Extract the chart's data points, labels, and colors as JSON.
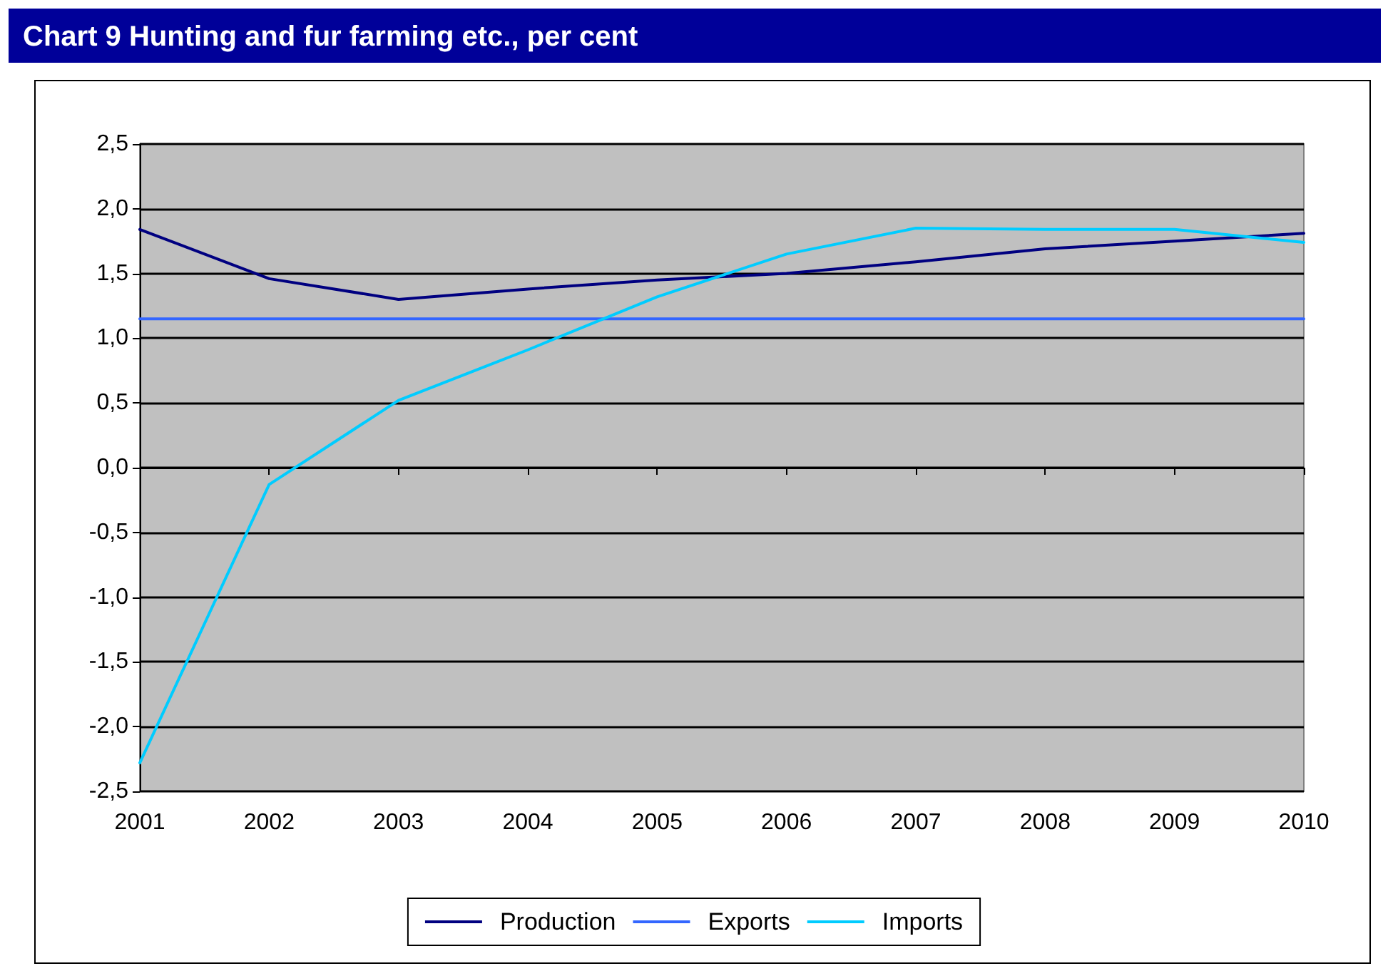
{
  "chart_data": {
    "type": "line",
    "title": "Chart 9 Hunting and fur farming etc., per cent",
    "categories": [
      "2001",
      "2002",
      "2003",
      "2004",
      "2005",
      "2006",
      "2007",
      "2008",
      "2009",
      "2010"
    ],
    "series": [
      {
        "name": "Production",
        "color": "#000080",
        "values": [
          1.84,
          1.46,
          1.3,
          1.38,
          1.45,
          1.5,
          1.59,
          1.69,
          1.75,
          1.81
        ]
      },
      {
        "name": "Exports",
        "color": "#3366ff",
        "values": [
          1.15,
          1.15,
          1.15,
          1.15,
          1.15,
          1.15,
          1.15,
          1.15,
          1.15,
          1.15
        ]
      },
      {
        "name": "Imports",
        "color": "#00ccff",
        "values": [
          -2.28,
          -0.13,
          0.52,
          0.91,
          1.32,
          1.65,
          1.85,
          1.84,
          1.84,
          1.74
        ]
      }
    ],
    "ylim": [
      -2.5,
      2.5
    ],
    "yticks": [
      {
        "value": -2.5,
        "label": "-2,5"
      },
      {
        "value": -2,
        "label": "-2,0"
      },
      {
        "value": -1.5,
        "label": "-1,5"
      },
      {
        "value": -1,
        "label": "-1,0"
      },
      {
        "value": -0.5,
        "label": "-0,5"
      },
      {
        "value": 0,
        "label": "0,0"
      },
      {
        "value": 0.5,
        "label": "0,5"
      },
      {
        "value": 1,
        "label": "1,0"
      },
      {
        "value": 1.5,
        "label": "1,5"
      },
      {
        "value": 2,
        "label": "2,0"
      },
      {
        "value": 2.5,
        "label": "2,5"
      }
    ],
    "grid": "y",
    "legend": "bottom",
    "marker": "none",
    "line_style": "solid"
  }
}
